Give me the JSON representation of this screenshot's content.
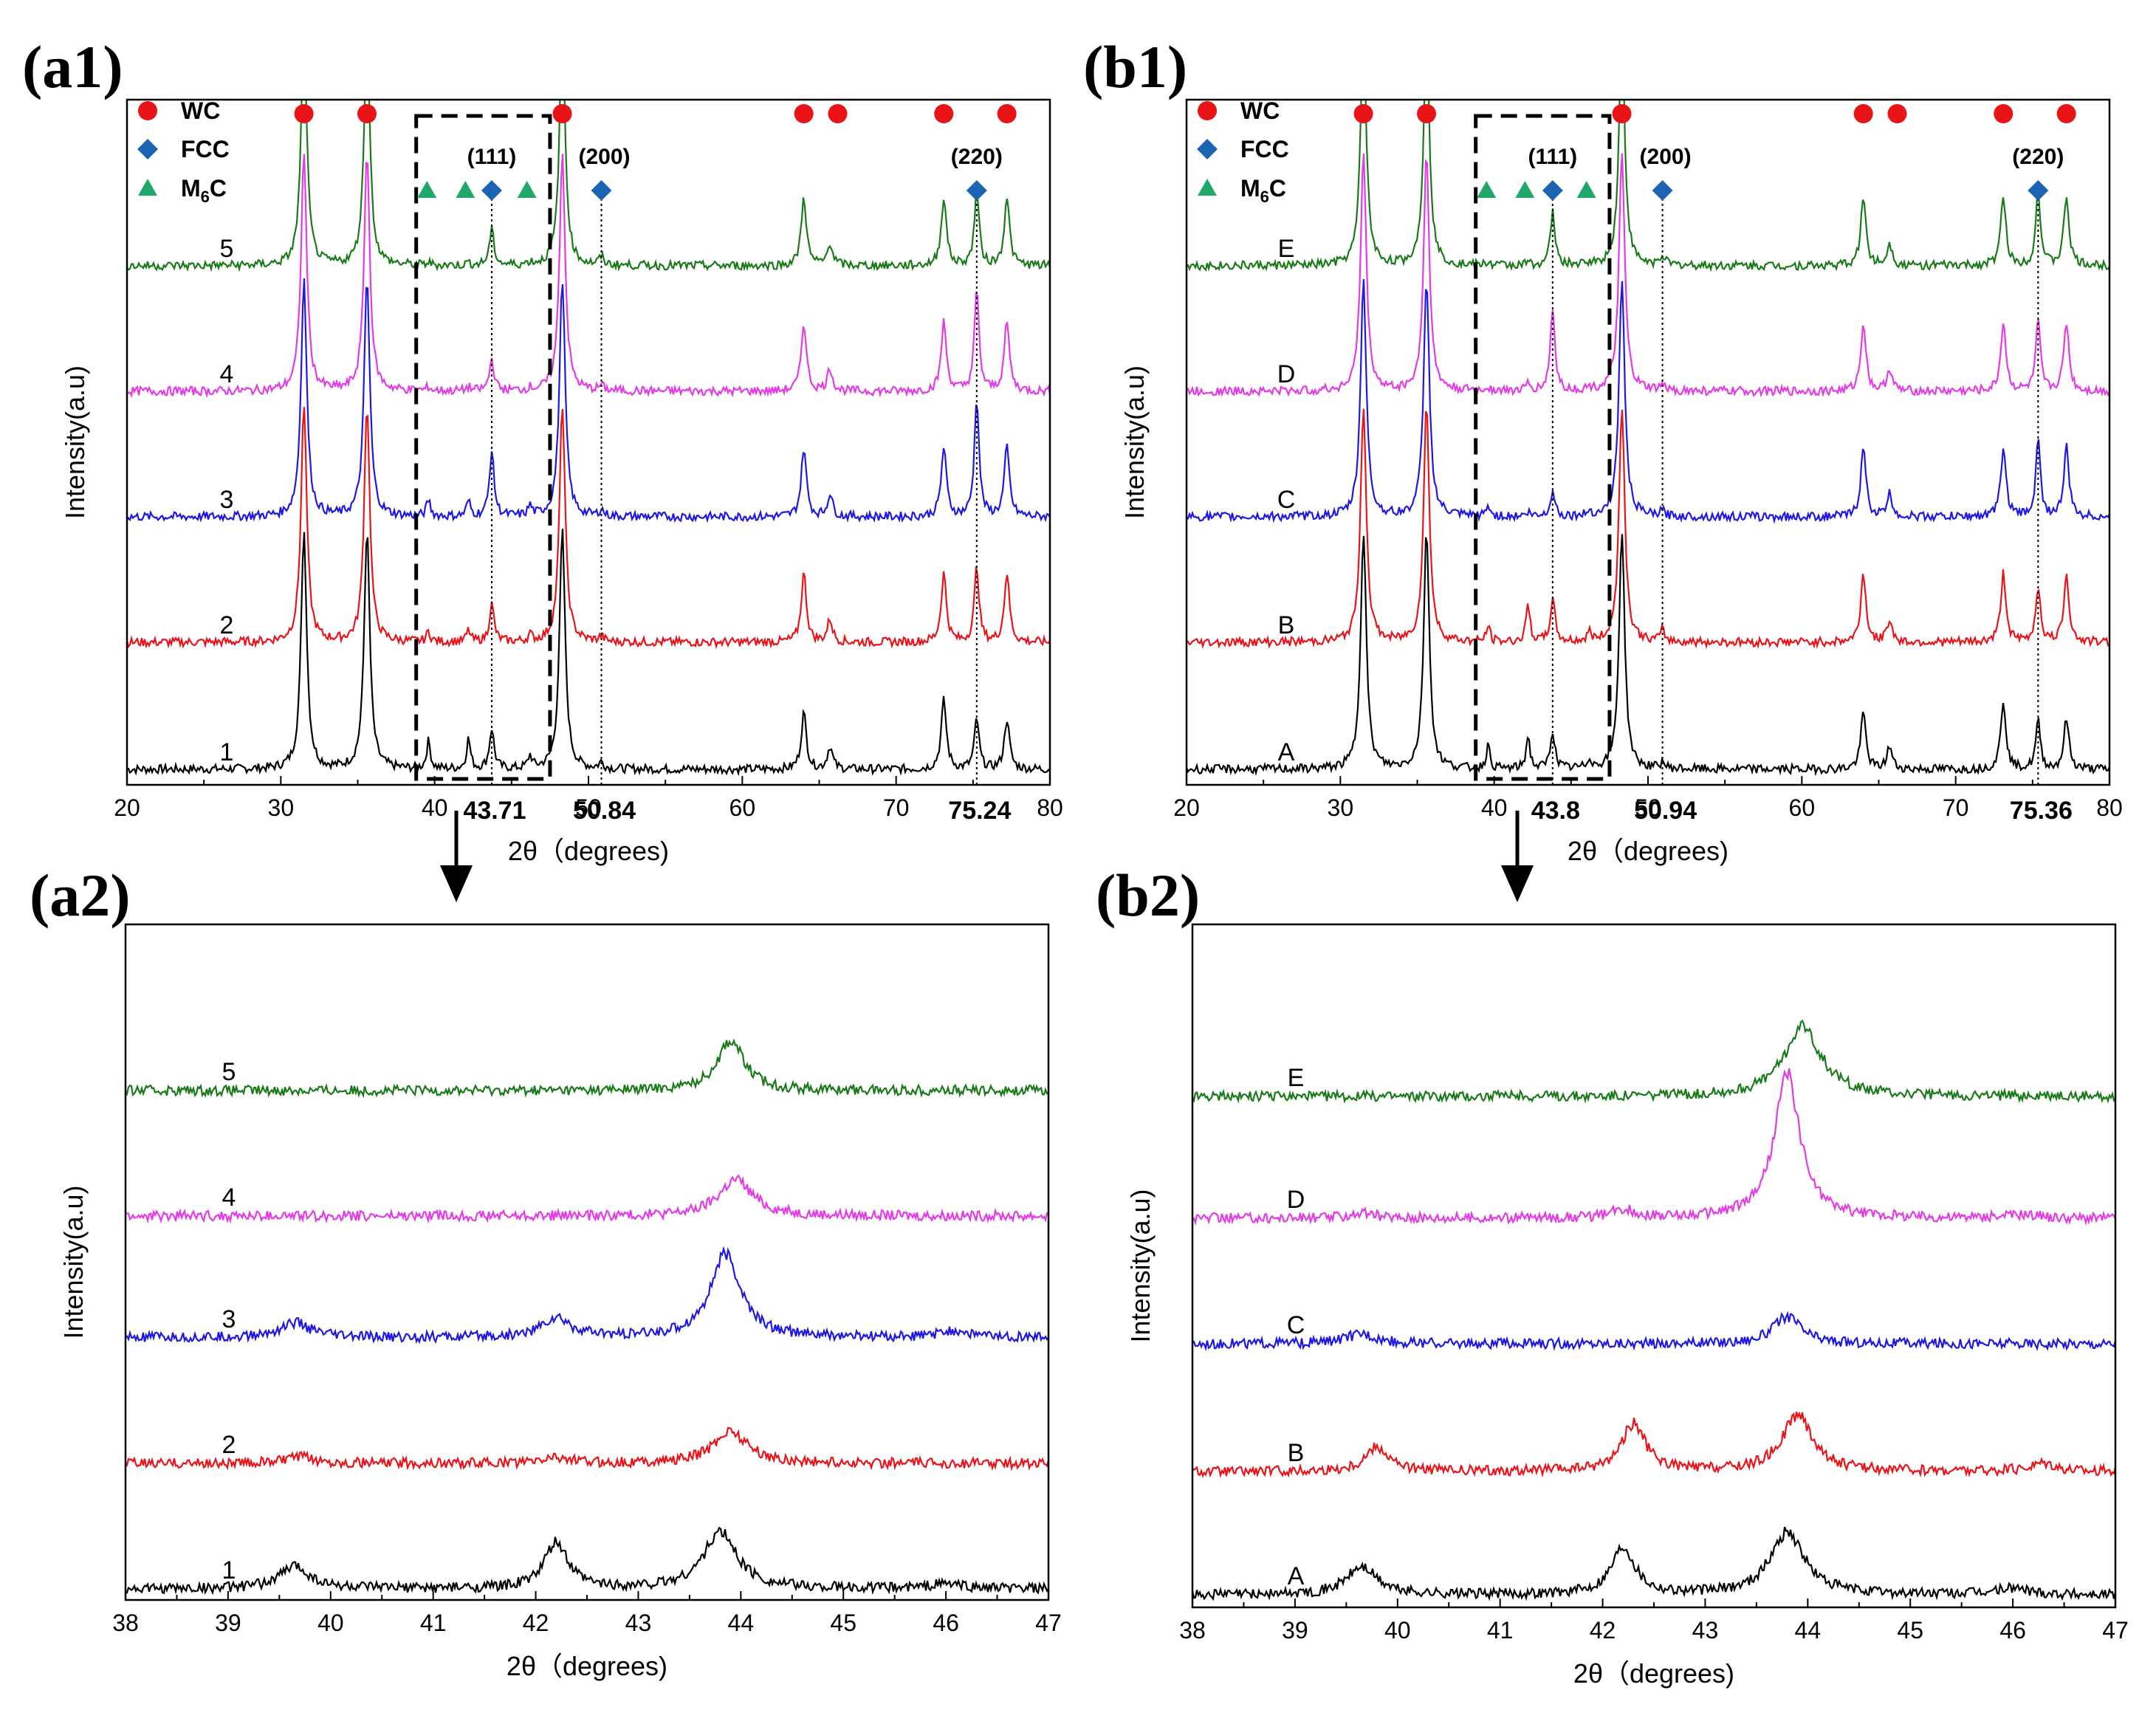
{
  "colors": {
    "series": [
      "#000000",
      "#e8141a",
      "#1f18e0",
      "#e33be6",
      "#1a7a1a"
    ],
    "wc_marker": "#e81418",
    "fcc_marker": "#1d63b3",
    "m6c_marker": "#1fa86a"
  },
  "chart_data": [
    {
      "id": "a1",
      "panel_label": "(a1)",
      "type": "line",
      "title": "",
      "xlabel": "2θ（degrees)",
      "ylabel": "Intensity(a.u)",
      "xlim": [
        20,
        80
      ],
      "xticks": [
        20,
        30,
        40,
        50,
        60,
        70,
        80
      ],
      "bold_ticks": [
        43.71,
        50.84,
        75.24
      ],
      "series_names": [
        "1",
        "2",
        "3",
        "4",
        "5"
      ],
      "wc_peaks": [
        31.5,
        35.6,
        48.3,
        64.0,
        65.7,
        73.1,
        75.5,
        77.2
      ],
      "m6c_peaks": [
        39.6,
        42.2,
        46.2
      ],
      "fcc_peaks": [
        {
          "x": 43.71,
          "hkl": "(111)"
        },
        {
          "x": 50.84,
          "hkl": "(200)"
        },
        {
          "x": 75.24,
          "hkl": "(220)"
        }
      ],
      "wc_markers_x": [
        31.5,
        35.6,
        48.3,
        64.0,
        66.2,
        73.1,
        77.2
      ],
      "m6c_markers_x": [
        39.5,
        42.0,
        46.0
      ],
      "fcc_markers_x": [
        43.71,
        50.84,
        75.24
      ],
      "m6c_heights": [
        [
          0.22,
          0.24,
          0.1
        ],
        [
          0.08,
          0.09,
          0.05
        ],
        [
          0.13,
          0.12,
          0.08
        ],
        [
          0.03,
          0.03,
          0.02
        ],
        [
          0.02,
          0.02,
          0.02
        ]
      ],
      "fcc_heights": [
        [
          0.32,
          0.05,
          0.4
        ],
        [
          0.3,
          0.04,
          0.6
        ],
        [
          0.52,
          0.05,
          0.95
        ],
        [
          0.25,
          0.04,
          0.8
        ],
        [
          0.28,
          0.06,
          0.6
        ]
      ],
      "zoom_box": [
        38.8,
        47.5
      ]
    },
    {
      "id": "b1",
      "panel_label": "(b1)",
      "type": "line",
      "title": "",
      "xlabel": "2θ（degrees)",
      "ylabel": "Intensity(a.u)",
      "xlim": [
        20,
        80
      ],
      "xticks": [
        20,
        30,
        40,
        50,
        60,
        70,
        80
      ],
      "bold_ticks": [
        43.8,
        50.94,
        75.36
      ],
      "series_names": [
        "A",
        "B",
        "C",
        "D",
        "E"
      ],
      "wc_peaks": [
        31.5,
        35.6,
        48.3,
        64.0,
        65.7,
        73.1,
        75.5,
        77.2
      ],
      "m6c_peaks": [
        39.6,
        42.2,
        46.2
      ],
      "fcc_peaks": [
        {
          "x": 43.8,
          "hkl": "(111)"
        },
        {
          "x": 50.94,
          "hkl": "(200)"
        },
        {
          "x": 75.36,
          "hkl": "(220)"
        }
      ],
      "wc_markers_x": [
        31.5,
        35.6,
        48.3,
        64.0,
        66.2,
        73.1,
        77.2
      ],
      "m6c_markers_x": [
        39.5,
        42.0,
        46.0
      ],
      "fcc_markers_x": [
        43.8,
        50.94,
        75.36
      ],
      "m6c_heights": [
        [
          0.18,
          0.26,
          0.08
        ],
        [
          0.12,
          0.3,
          0.07
        ],
        [
          0.08,
          0.03,
          0.04
        ],
        [
          0.03,
          0.05,
          0.02
        ],
        [
          0.02,
          0.02,
          0.02
        ]
      ],
      "fcc_heights": [
        [
          0.3,
          0.05,
          0.38
        ],
        [
          0.34,
          0.09,
          0.45
        ],
        [
          0.2,
          0.04,
          0.6
        ],
        [
          0.65,
          0.04,
          0.55
        ],
        [
          0.42,
          0.08,
          0.6
        ]
      ],
      "zoom_box": [
        38.8,
        47.5
      ]
    },
    {
      "id": "a2",
      "panel_label": "(a2)",
      "type": "line",
      "title": "",
      "xlabel": "2θ（degrees)",
      "ylabel": "Intensity(a.u)",
      "xlim": [
        38,
        47
      ],
      "xticks": [
        38,
        39,
        40,
        41,
        42,
        43,
        44,
        45,
        46,
        47
      ],
      "series_names": [
        "1",
        "2",
        "3",
        "4",
        "5"
      ],
      "peaks": [
        [
          {
            "x": 39.65,
            "h": 0.18,
            "w": 0.18
          },
          {
            "x": 42.2,
            "h": 0.36,
            "w": 0.14
          },
          {
            "x": 43.8,
            "h": 0.45,
            "w": 0.2
          },
          {
            "x": 46.0,
            "h": 0.04,
            "w": 0.2
          }
        ],
        [
          {
            "x": 39.7,
            "h": 0.05,
            "w": 0.18
          },
          {
            "x": 42.2,
            "h": 0.05,
            "w": 0.14
          },
          {
            "x": 43.9,
            "h": 0.26,
            "w": 0.2
          }
        ],
        [
          {
            "x": 39.65,
            "h": 0.12,
            "w": 0.18
          },
          {
            "x": 42.2,
            "h": 0.15,
            "w": 0.18
          },
          {
            "x": 43.85,
            "h": 0.66,
            "w": 0.18
          },
          {
            "x": 46.1,
            "h": 0.05,
            "w": 0.2
          }
        ],
        [
          {
            "x": 43.95,
            "h": 0.29,
            "w": 0.2
          }
        ],
        [
          {
            "x": 43.9,
            "h": 0.4,
            "w": 0.16
          }
        ]
      ]
    },
    {
      "id": "b2",
      "panel_label": "(b2)",
      "type": "line",
      "title": "",
      "xlabel": "2θ（degrees)",
      "ylabel": "Intensity(a.u)",
      "xlim": [
        38,
        47
      ],
      "xticks": [
        38,
        39,
        40,
        41,
        42,
        43,
        44,
        45,
        46,
        47
      ],
      "series_names": [
        "A",
        "B",
        "C",
        "D",
        "E"
      ],
      "peaks": [
        [
          {
            "x": 39.65,
            "h": 0.22,
            "w": 0.18
          },
          {
            "x": 42.2,
            "h": 0.38,
            "w": 0.14
          },
          {
            "x": 43.8,
            "h": 0.5,
            "w": 0.2
          },
          {
            "x": 46.0,
            "h": 0.05,
            "w": 0.2
          }
        ],
        [
          {
            "x": 39.8,
            "h": 0.2,
            "w": 0.14
          },
          {
            "x": 42.3,
            "h": 0.38,
            "w": 0.14
          },
          {
            "x": 43.9,
            "h": 0.45,
            "w": 0.18
          },
          {
            "x": 46.3,
            "h": 0.07,
            "w": 0.15
          }
        ],
        [
          {
            "x": 39.65,
            "h": 0.08,
            "w": 0.18
          },
          {
            "x": 43.8,
            "h": 0.22,
            "w": 0.16
          }
        ],
        [
          {
            "x": 39.65,
            "h": 0.04,
            "w": 0.15
          },
          {
            "x": 42.2,
            "h": 0.07,
            "w": 0.12
          },
          {
            "x": 43.8,
            "h": 1.15,
            "w": 0.15
          },
          {
            "x": 46.1,
            "h": 0.03,
            "w": 0.15
          }
        ],
        [
          {
            "x": 43.95,
            "h": 0.55,
            "w": 0.22
          }
        ]
      ]
    }
  ],
  "legend": {
    "wc": "WC",
    "fcc": "FCC",
    "m6c_main": "M",
    "m6c_sub": "6",
    "m6c_tail": "C"
  }
}
